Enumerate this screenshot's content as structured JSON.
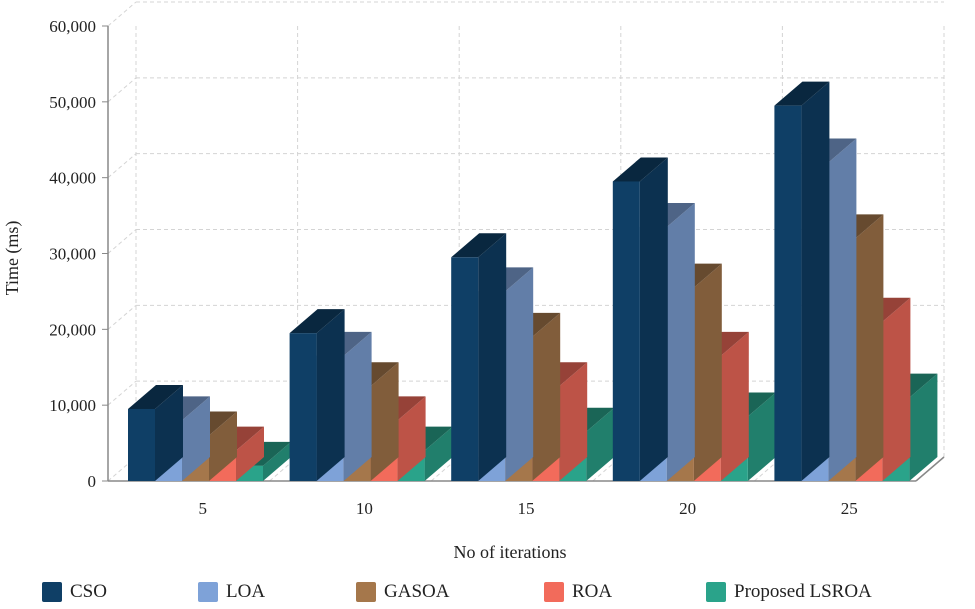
{
  "chart_data": {
    "type": "bar",
    "style": "3d-grouped",
    "title": "",
    "xlabel": "No of iterations",
    "ylabel": "Time (ms)",
    "ylim": [
      0,
      60000
    ],
    "yticks": [
      "0",
      "10,000",
      "20,000",
      "30,000",
      "40,000",
      "50,000",
      "60,000"
    ],
    "categories": [
      "5",
      "10",
      "15",
      "20",
      "25"
    ],
    "series": [
      {
        "name": "CSO",
        "color": "#0f3f66",
        "values": [
          9500,
          19500,
          29500,
          39500,
          49500
        ]
      },
      {
        "name": "LOA",
        "color": "#7ea2d8",
        "values": [
          8000,
          16500,
          25000,
          33500,
          42000
        ]
      },
      {
        "name": "GASOA",
        "color": "#a5774b",
        "values": [
          6000,
          12500,
          19000,
          25500,
          32000
        ]
      },
      {
        "name": "ROA",
        "color": "#f26b5b",
        "values": [
          4000,
          8000,
          12500,
          16500,
          21000
        ]
      },
      {
        "name": "Proposed LSROA",
        "color": "#2aa38a",
        "values": [
          2000,
          4000,
          6500,
          8500,
          11000
        ]
      }
    ],
    "grid": true,
    "legend_position": "bottom"
  }
}
